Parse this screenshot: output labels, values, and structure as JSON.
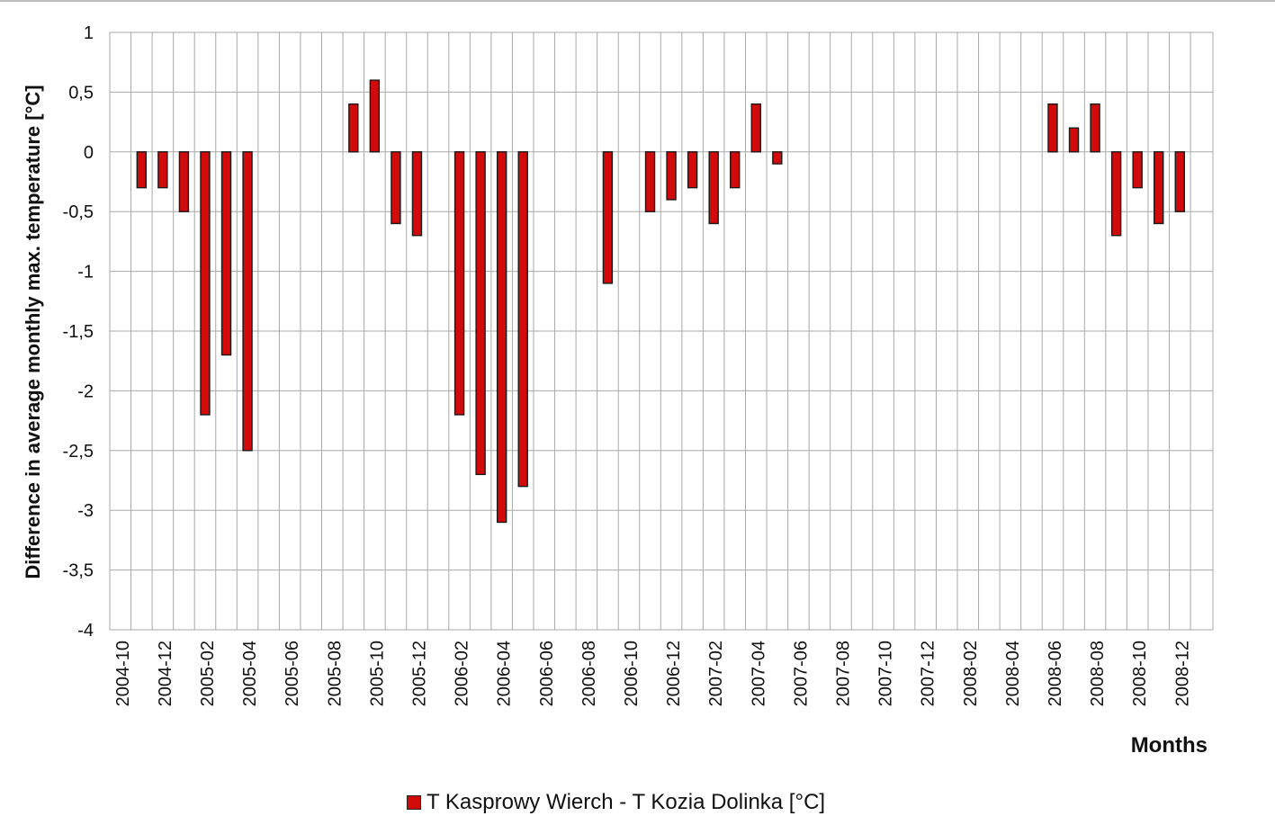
{
  "colors": {
    "bar_fill": "#d10b0b",
    "bar_stroke": "#1a1a1a",
    "grid": "#a8a8a8",
    "axis_text": "#111111"
  },
  "chart_data": {
    "type": "bar",
    "xlabel": "Months",
    "ylabel": "Difference in average monthly max. temperature [°C]",
    "ylim": [
      -4,
      1
    ],
    "y_ticks": [
      1,
      0.5,
      0,
      -0.5,
      -1,
      -1.5,
      -2,
      -2.5,
      -3,
      -3.5,
      -4
    ],
    "y_tick_labels": [
      "1",
      "0,5",
      "0",
      "-0,5",
      "-1",
      "-1,5",
      "-2",
      "-2,5",
      "-3",
      "-3,5",
      "-4"
    ],
    "categories": [
      "2004-10",
      "2004-11",
      "2004-12",
      "2005-01",
      "2005-02",
      "2005-03",
      "2005-04",
      "2005-05",
      "2005-06",
      "2005-07",
      "2005-08",
      "2005-09",
      "2005-10",
      "2005-11",
      "2005-12",
      "2006-01",
      "2006-02",
      "2006-03",
      "2006-04",
      "2006-05",
      "2006-06",
      "2006-07",
      "2006-08",
      "2006-09",
      "2006-10",
      "2006-11",
      "2006-12",
      "2007-01",
      "2007-02",
      "2007-03",
      "2007-04",
      "2007-05",
      "2007-06",
      "2007-07",
      "2007-08",
      "2007-09",
      "2007-10",
      "2007-11",
      "2007-12",
      "2008-01",
      "2008-02",
      "2008-03",
      "2008-04",
      "2008-05",
      "2008-06",
      "2008-07",
      "2008-08",
      "2008-09",
      "2008-10",
      "2008-11",
      "2008-12"
    ],
    "x_tick_labels": [
      "2004-10",
      "2004-12",
      "2005-02",
      "2005-04",
      "2005-06",
      "2005-08",
      "2005-10",
      "2005-12",
      "2006-02",
      "2006-04",
      "2006-06",
      "2006-08",
      "2006-10",
      "2006-12",
      "2007-02",
      "2007-04",
      "2007-06",
      "2007-08",
      "2007-10",
      "2007-12",
      "2008-02",
      "2008-04",
      "2008-06",
      "2008-08",
      "2008-10",
      "2008-12"
    ],
    "grid": true,
    "legend_position": "bottom-center",
    "series": [
      {
        "name": "T Kasprowy Wierch - T Kozia Dolinka [°C]",
        "color": "#d10b0b",
        "values": [
          null,
          -0.3,
          -0.3,
          -0.5,
          -2.2,
          -1.7,
          -2.5,
          null,
          null,
          null,
          null,
          0.4,
          0.6,
          -0.6,
          -0.7,
          null,
          -2.2,
          -2.7,
          -3.1,
          -2.8,
          null,
          null,
          null,
          -1.1,
          null,
          -0.5,
          -0.4,
          -0.3,
          -0.6,
          -0.3,
          0.4,
          -0.1,
          null,
          null,
          null,
          null,
          null,
          null,
          null,
          null,
          null,
          null,
          null,
          null,
          0.4,
          0.2,
          0.4,
          -0.7,
          -0.3,
          -0.6,
          -0.5
        ]
      }
    ]
  }
}
